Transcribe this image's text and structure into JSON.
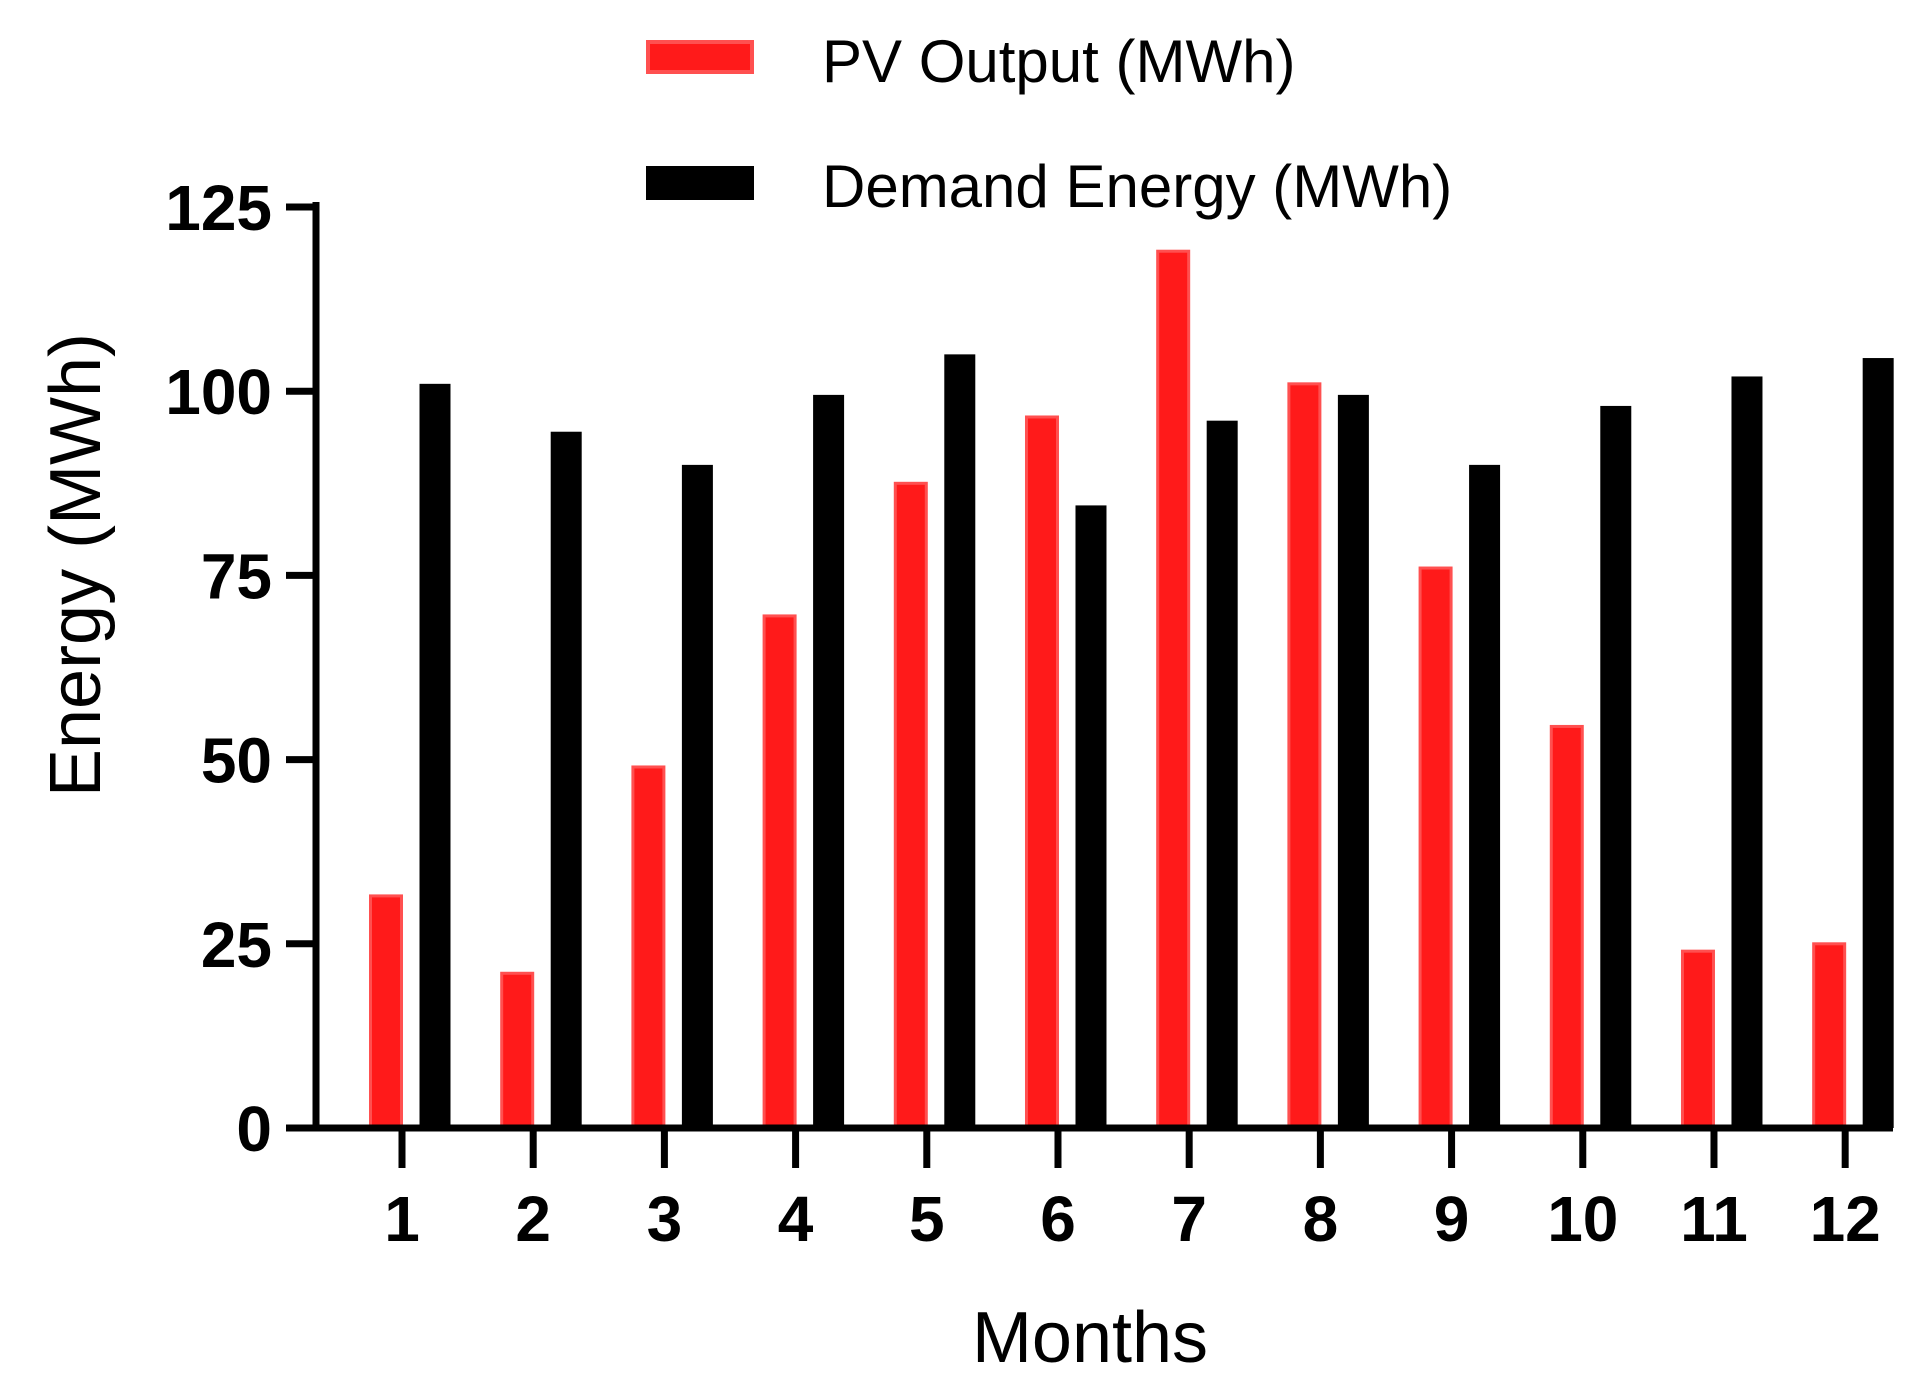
{
  "chart_data": {
    "type": "bar",
    "title": "",
    "xlabel": "Months",
    "ylabel": "Energy (MWh)",
    "ylim": [
      0,
      125
    ],
    "yticks": [
      0,
      25,
      50,
      75,
      100,
      125
    ],
    "grid": false,
    "legend_position": "top-center",
    "categories": [
      "1",
      "2",
      "3",
      "4",
      "5",
      "6",
      "7",
      "8",
      "9",
      "10",
      "11",
      "12"
    ],
    "series": [
      {
        "name": "PV Output (MWh)",
        "color": "#ff1a1a",
        "values": [
          31.5,
          21,
          49,
          69.5,
          87.5,
          96.5,
          119,
          101,
          76,
          54.5,
          24,
          25
        ]
      },
      {
        "name": "Demand Energy (MWh)",
        "color": "#000000",
        "values": [
          101,
          94.5,
          90,
          99.5,
          105,
          84.5,
          96,
          99.5,
          90,
          98,
          102,
          104.5
        ]
      }
    ]
  }
}
